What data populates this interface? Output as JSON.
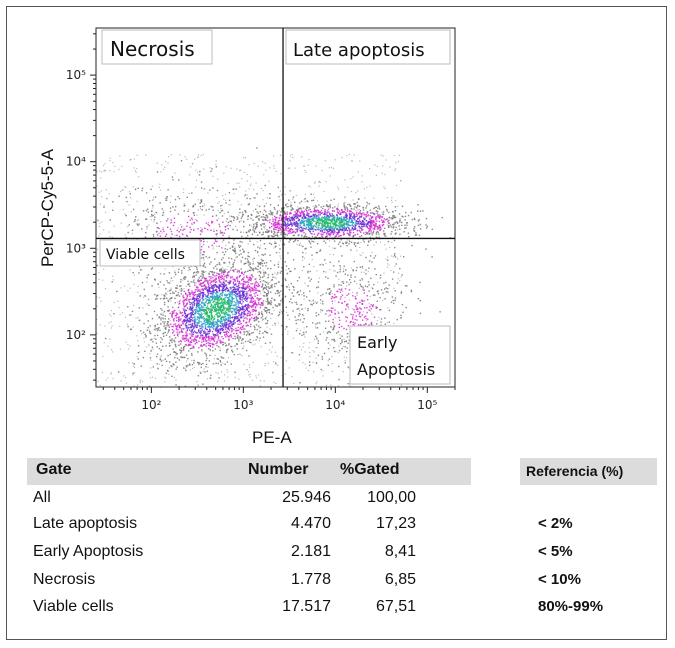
{
  "chart_data": {
    "type": "scatter",
    "xlabel": "PE-A",
    "ylabel": "PerCP-Cy5-5-A",
    "x_scale": "log",
    "y_scale": "log",
    "xlim": [
      25,
      200000
    ],
    "ylim": [
      25,
      350000
    ],
    "x_ticks": [
      {
        "value": 100,
        "label": "10²"
      },
      {
        "value": 1000,
        "label": "10³"
      },
      {
        "value": 10000,
        "label": "10⁴"
      },
      {
        "value": 100000,
        "label": "10⁵"
      }
    ],
    "y_ticks": [
      {
        "value": 100,
        "label": "10²"
      },
      {
        "value": 1000,
        "label": "10³"
      },
      {
        "value": 10000,
        "label": "10⁴"
      },
      {
        "value": 100000,
        "label": "10⁵"
      }
    ],
    "quadrant_thresholds": {
      "x": 2700,
      "y": 1300
    },
    "quadrant_labels": {
      "top_left": "Necrosis",
      "top_right": "Late apoptosis",
      "bottom_left": "Viable cells",
      "bottom_right_line1": "Early",
      "bottom_right_line2": "Apoptosis"
    },
    "populations": [
      {
        "center_x": 500,
        "center_y": 200,
        "density": "high"
      },
      {
        "center_x": 8000,
        "center_y": 2000,
        "density": "high"
      },
      {
        "center_x": 15000,
        "center_y": 200,
        "density": "low"
      },
      {
        "center_x": 300,
        "center_y": 1500,
        "density": "low"
      }
    ],
    "density_colors": [
      "#777777",
      "#d42bd4",
      "#6a2bd8",
      "#2aa3c8",
      "#22b86c"
    ]
  },
  "table": {
    "headers": {
      "gate": "Gate",
      "number": "Number",
      "pct": "%Gated",
      "reference": "Referencia (%)"
    },
    "rows": [
      {
        "gate": "All",
        "number": "25.946",
        "pct": "100,00",
        "reference": ""
      },
      {
        "gate": "Late apoptosis",
        "number": "4.470",
        "pct": "17,23",
        "reference": "< 2%"
      },
      {
        "gate": "Early Apoptosis",
        "number": "2.181",
        "pct": "8,41",
        "reference": "< 5%"
      },
      {
        "gate": "Necrosis",
        "number": "1.778",
        "pct": "6,85",
        "reference": "< 10%"
      },
      {
        "gate": "Viable cells",
        "number": "17.517",
        "pct": "67,51",
        "reference": "80%-99%"
      }
    ]
  }
}
